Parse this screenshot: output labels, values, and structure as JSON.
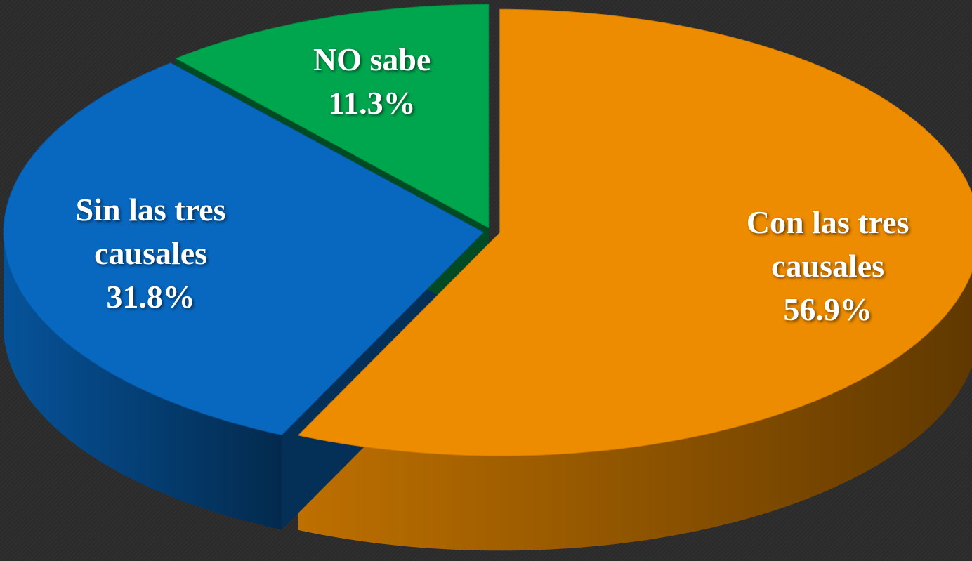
{
  "chart_data": {
    "type": "pie",
    "categories": [
      "Con las tres causales",
      "Sin las tres causales",
      "NO sabe"
    ],
    "values": [
      56.9,
      31.8,
      11.3
    ],
    "value_labels": [
      "56.9%",
      "31.8%",
      "11.3%"
    ],
    "colors": [
      "#ee8c00",
      "#0868c0",
      "#00a64e"
    ]
  }
}
